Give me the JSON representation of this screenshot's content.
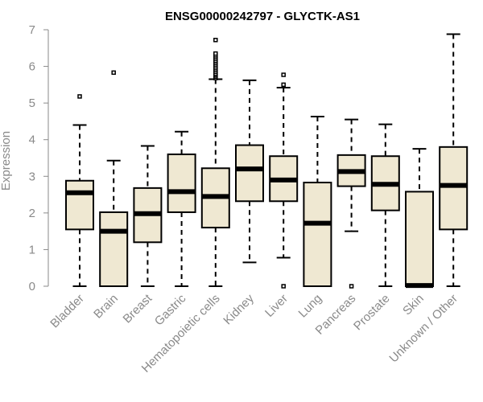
{
  "chart_data": {
    "type": "boxplot",
    "title": "ENSG00000242797 - GLYCTK-AS1",
    "xlabel": "",
    "ylabel": "Expression",
    "ylim": [
      0,
      7
    ],
    "yticks": [
      0,
      1,
      2,
      3,
      4,
      5,
      6,
      7
    ],
    "box_fill": "#efe8d2",
    "categories": [
      "Bladder",
      "Brain",
      "Breast",
      "Gastric",
      "Hematopoietic cells",
      "Kidney",
      "Liver",
      "Lung",
      "Pancreas",
      "Prostate",
      "Skin",
      "Unknown / Other"
    ],
    "boxes": [
      {
        "category": "Bladder",
        "whisker_low": 0,
        "q1": 1.55,
        "median": 2.55,
        "q3": 2.88,
        "whisker_high": 4.4,
        "outliers": [
          5.18
        ]
      },
      {
        "category": "Brain",
        "whisker_low": 0,
        "q1": 0,
        "median": 1.5,
        "q3": 2.02,
        "whisker_high": 3.43,
        "outliers": [
          5.83
        ]
      },
      {
        "category": "Breast",
        "whisker_low": 0,
        "q1": 1.2,
        "median": 1.98,
        "q3": 2.68,
        "whisker_high": 3.83,
        "outliers": []
      },
      {
        "category": "Gastric",
        "whisker_low": 0,
        "q1": 2.02,
        "median": 2.58,
        "q3": 3.6,
        "whisker_high": 4.22,
        "outliers": []
      },
      {
        "category": "Hematopoietic cells",
        "whisker_low": 0,
        "q1": 1.6,
        "median": 2.45,
        "q3": 3.22,
        "whisker_high": 5.65,
        "outliers": [
          5.68,
          5.72,
          5.76,
          5.8,
          5.85,
          5.9,
          5.95,
          6.0,
          6.05,
          6.1,
          6.15,
          6.2,
          6.25,
          6.3,
          6.35,
          6.72
        ]
      },
      {
        "category": "Kidney",
        "whisker_low": 0.65,
        "q1": 2.32,
        "median": 3.2,
        "q3": 3.85,
        "whisker_high": 5.62,
        "outliers": []
      },
      {
        "category": "Liver",
        "whisker_low": 0.78,
        "q1": 2.32,
        "median": 2.9,
        "q3": 3.55,
        "whisker_high": 5.42,
        "outliers": [
          0,
          5.5,
          5.77
        ]
      },
      {
        "category": "Lung",
        "whisker_low": 0,
        "q1": 0,
        "median": 1.72,
        "q3": 2.83,
        "whisker_high": 4.63,
        "outliers": []
      },
      {
        "category": "Pancreas",
        "whisker_low": 1.5,
        "q1": 2.73,
        "median": 3.13,
        "q3": 3.58,
        "whisker_high": 4.55,
        "outliers": [
          0
        ]
      },
      {
        "category": "Prostate",
        "whisker_low": 0,
        "q1": 2.07,
        "median": 2.78,
        "q3": 3.55,
        "whisker_high": 4.42,
        "outliers": []
      },
      {
        "category": "Skin",
        "whisker_low": 0,
        "q1": 0,
        "median": 0.02,
        "q3": 2.58,
        "whisker_high": 3.75,
        "outliers": []
      },
      {
        "category": "Unknown / Other",
        "whisker_low": 0,
        "q1": 1.55,
        "median": 2.75,
        "q3": 3.8,
        "whisker_high": 6.88,
        "outliers": []
      }
    ]
  }
}
